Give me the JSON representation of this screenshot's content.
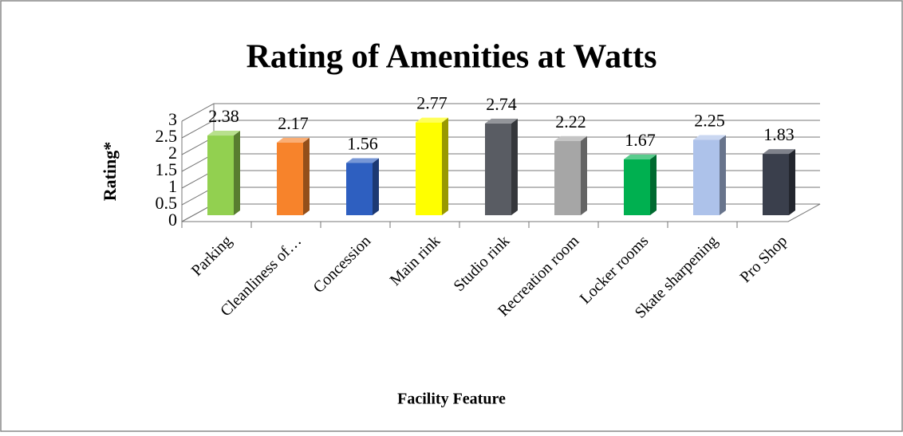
{
  "chart_data": {
    "type": "bar",
    "title": "Rating of Amenities at Watts",
    "x_label": "Facility Feature",
    "y_label": "Rating*",
    "categories": [
      "Parking",
      "Cleanliness of…",
      "Concession",
      "Main rink",
      "Studio rink",
      "Recreation room",
      "Locker rooms",
      "Skate sharpening",
      "Pro Shop"
    ],
    "values": [
      2.38,
      2.17,
      1.56,
      2.77,
      2.74,
      2.22,
      1.67,
      2.25,
      1.83
    ],
    "colors": [
      "#92d050",
      "#f7832b",
      "#2e5fc0",
      "#ffff00",
      "#595c63",
      "#a6a6a6",
      "#00b050",
      "#adc2ea",
      "#3a3f4c"
    ],
    "ylim": [
      0,
      3
    ],
    "yticks": [
      0,
      0.5,
      1,
      1.5,
      2,
      2.5,
      3
    ],
    "grid": true
  }
}
